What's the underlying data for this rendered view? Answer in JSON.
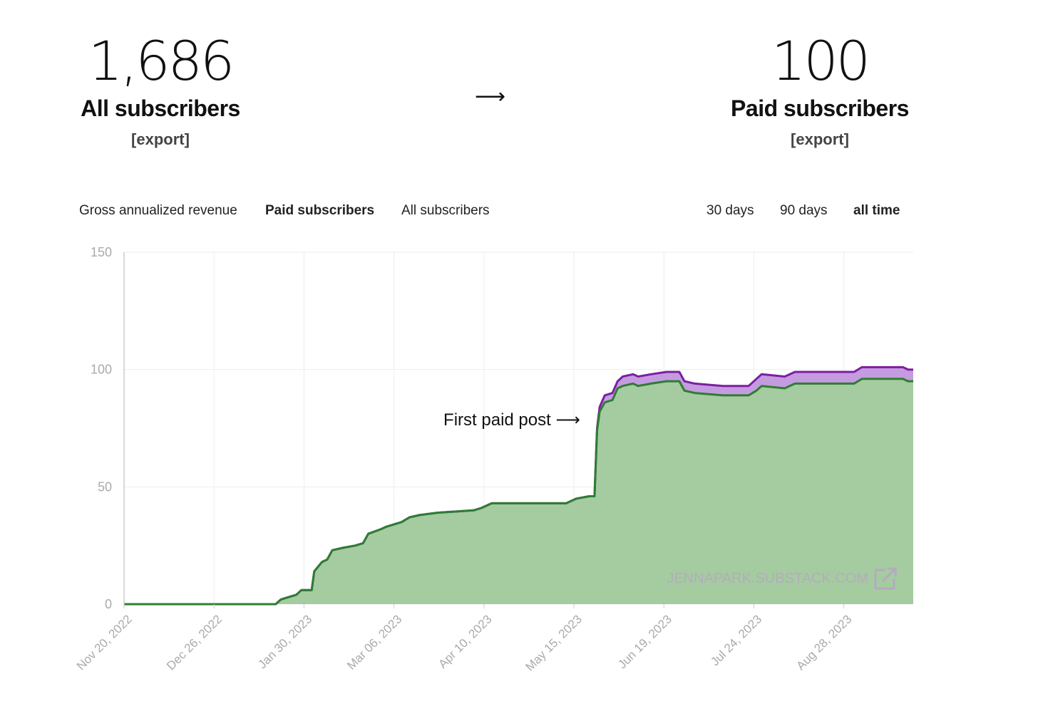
{
  "stats": {
    "all": {
      "value": "1,686",
      "label": "All subscribers",
      "export": "[export]"
    },
    "arrow": "⟶",
    "paid": {
      "value": "100",
      "label": "Paid subscribers",
      "export": "[export]"
    }
  },
  "metric_tabs": [
    {
      "label": "Gross annualized revenue",
      "active": false
    },
    {
      "label": "Paid subscribers",
      "active": true
    },
    {
      "label": "All subscribers",
      "active": false
    }
  ],
  "range_tabs": [
    {
      "label": "30 days",
      "active": false
    },
    {
      "label": "90 days",
      "active": false
    },
    {
      "label": "all time",
      "active": true
    }
  ],
  "colors": {
    "green_line": "#2e7d32",
    "green_fill": "#a5cba0",
    "purple_line": "#7b1fa2",
    "purple_fill": "#c59be0",
    "grid": "#eeeeee",
    "axis_text": "#aaaaaa"
  },
  "chart_data": {
    "type": "area",
    "x_tick_labels": [
      "Nov 20, 2022",
      "Dec 26, 2022",
      "Jan 30, 2023",
      "Mar 06, 2023",
      "Apr 10, 2023",
      "May 15, 2023",
      "Jun 19, 2023",
      "Jul 24, 2023",
      "Aug 28, 2023"
    ],
    "y_ticks": [
      0,
      50,
      100,
      150
    ],
    "ylim": [
      0,
      150
    ],
    "xlim": [
      "2022-11-20",
      "2023-09-23"
    ],
    "annotation": {
      "text": "First paid post ⟶",
      "date": "2023-05-22"
    },
    "watermark": "JENNAPARK.SUBSTACK.COM",
    "series": [
      {
        "values": [
          [
            "2022-11-20",
            0
          ],
          [
            "2023-01-18",
            0
          ],
          [
            "2023-01-20",
            2
          ],
          [
            "2023-01-23",
            3
          ],
          [
            "2023-01-26",
            4
          ],
          [
            "2023-01-28",
            6
          ],
          [
            "2023-02-01",
            6
          ],
          [
            "2023-02-02",
            14
          ],
          [
            "2023-02-05",
            18
          ],
          [
            "2023-02-07",
            19
          ],
          [
            "2023-02-09",
            23
          ],
          [
            "2023-02-13",
            24
          ],
          [
            "2023-02-18",
            25
          ],
          [
            "2023-02-21",
            26
          ],
          [
            "2023-02-23",
            30
          ],
          [
            "2023-02-28",
            32
          ],
          [
            "2023-03-02",
            33
          ],
          [
            "2023-03-08",
            35
          ],
          [
            "2023-03-11",
            37
          ],
          [
            "2023-03-15",
            38
          ],
          [
            "2023-03-22",
            39
          ],
          [
            "2023-04-05",
            40
          ],
          [
            "2023-04-08",
            41
          ],
          [
            "2023-04-12",
            43
          ],
          [
            "2023-05-11",
            43
          ],
          [
            "2023-05-15",
            45
          ],
          [
            "2023-05-20",
            46
          ],
          [
            "2023-05-22",
            46
          ],
          [
            "2023-05-23",
            74
          ],
          [
            "2023-05-24",
            82
          ],
          [
            "2023-05-26",
            86
          ],
          [
            "2023-05-29",
            87
          ],
          [
            "2023-05-31",
            92
          ],
          [
            "2023-06-02",
            93
          ],
          [
            "2023-06-06",
            94
          ],
          [
            "2023-06-08",
            93
          ],
          [
            "2023-06-13",
            94
          ],
          [
            "2023-06-19",
            95
          ],
          [
            "2023-06-24",
            95
          ],
          [
            "2023-06-26",
            91
          ],
          [
            "2023-06-30",
            90
          ],
          [
            "2023-07-11",
            89
          ],
          [
            "2023-07-21",
            89
          ],
          [
            "2023-07-24",
            91
          ],
          [
            "2023-07-26",
            93
          ],
          [
            "2023-08-04",
            92
          ],
          [
            "2023-08-08",
            94
          ],
          [
            "2023-08-31",
            94
          ],
          [
            "2023-09-03",
            96
          ],
          [
            "2023-09-19",
            96
          ],
          [
            "2023-09-21",
            95
          ],
          [
            "2023-09-23",
            95
          ]
        ]
      },
      {
        "values": [
          [
            "2022-11-20",
            0
          ],
          [
            "2023-01-18",
            0
          ],
          [
            "2023-01-20",
            2
          ],
          [
            "2023-01-23",
            3
          ],
          [
            "2023-01-26",
            4
          ],
          [
            "2023-01-28",
            6
          ],
          [
            "2023-02-01",
            6
          ],
          [
            "2023-02-02",
            14
          ],
          [
            "2023-02-05",
            18
          ],
          [
            "2023-02-07",
            19
          ],
          [
            "2023-02-09",
            23
          ],
          [
            "2023-02-13",
            24
          ],
          [
            "2023-02-18",
            25
          ],
          [
            "2023-02-21",
            26
          ],
          [
            "2023-02-23",
            30
          ],
          [
            "2023-02-28",
            32
          ],
          [
            "2023-03-02",
            33
          ],
          [
            "2023-03-08",
            35
          ],
          [
            "2023-03-11",
            37
          ],
          [
            "2023-03-15",
            38
          ],
          [
            "2023-03-22",
            39
          ],
          [
            "2023-04-05",
            40
          ],
          [
            "2023-04-08",
            41
          ],
          [
            "2023-04-12",
            43
          ],
          [
            "2023-05-11",
            43
          ],
          [
            "2023-05-15",
            45
          ],
          [
            "2023-05-20",
            46
          ],
          [
            "2023-05-22",
            46
          ],
          [
            "2023-05-23",
            75
          ],
          [
            "2023-05-24",
            84
          ],
          [
            "2023-05-26",
            89
          ],
          [
            "2023-05-29",
            90
          ],
          [
            "2023-05-31",
            95
          ],
          [
            "2023-06-02",
            97
          ],
          [
            "2023-06-06",
            98
          ],
          [
            "2023-06-08",
            97
          ],
          [
            "2023-06-13",
            98
          ],
          [
            "2023-06-19",
            99
          ],
          [
            "2023-06-24",
            99
          ],
          [
            "2023-06-26",
            95
          ],
          [
            "2023-06-30",
            94
          ],
          [
            "2023-07-11",
            93
          ],
          [
            "2023-07-21",
            93
          ],
          [
            "2023-07-24",
            96
          ],
          [
            "2023-07-26",
            98
          ],
          [
            "2023-08-04",
            97
          ],
          [
            "2023-08-08",
            99
          ],
          [
            "2023-08-31",
            99
          ],
          [
            "2023-09-03",
            101
          ],
          [
            "2023-09-19",
            101
          ],
          [
            "2023-09-21",
            100
          ],
          [
            "2023-09-23",
            100
          ]
        ]
      }
    ]
  }
}
